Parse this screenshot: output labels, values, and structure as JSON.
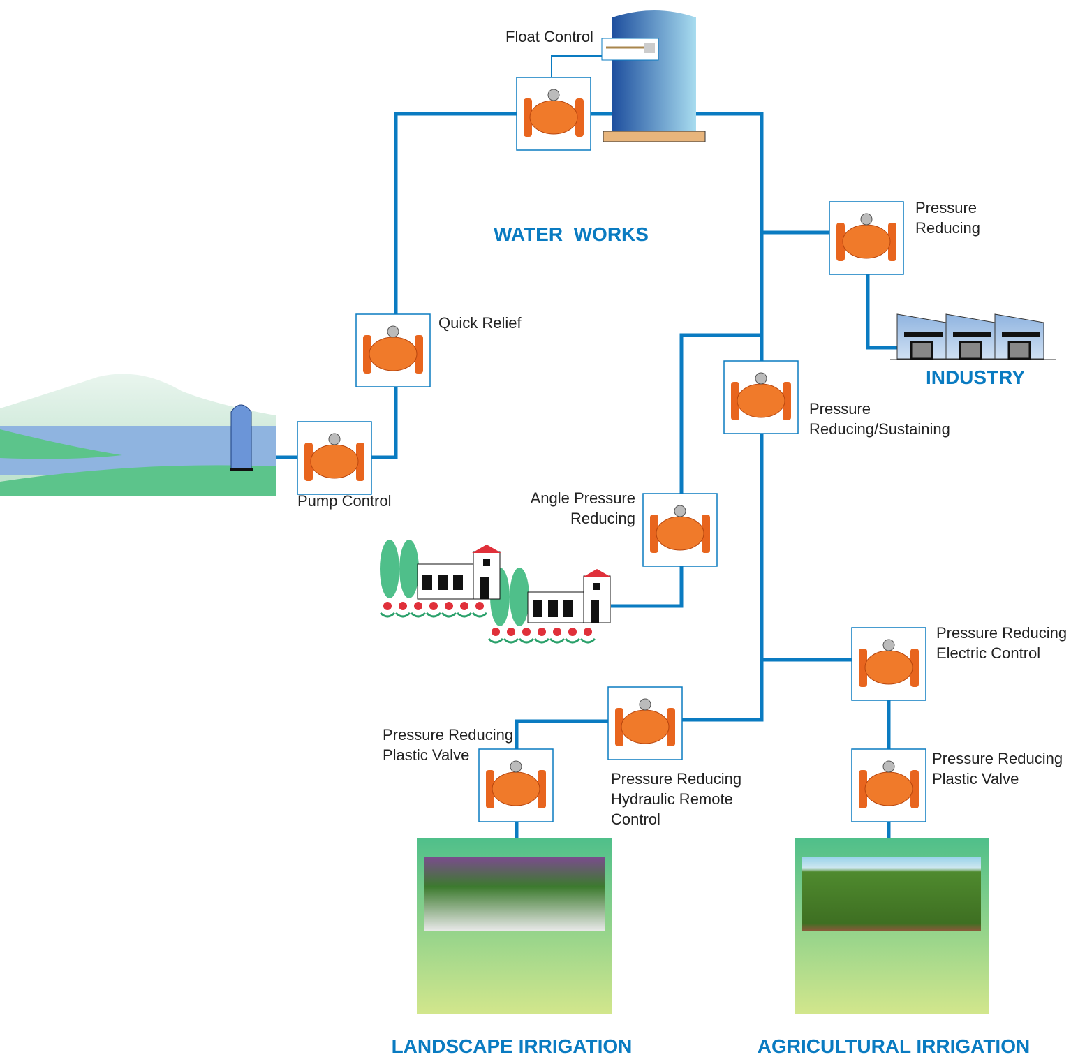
{
  "areas": {
    "water_works": "WATER  WORKS",
    "industry": "INDUSTRY",
    "landscape": "LANDSCAPE IRRIGATION",
    "agricultural": "AGRICULTURAL IRRIGATION"
  },
  "valves": [
    {
      "label": [
        "Float Control"
      ]
    },
    {
      "label": [
        "Quick Relief"
      ]
    },
    {
      "label": [
        "Pump Control"
      ]
    },
    {
      "label": [
        "Pressure",
        "Reducing"
      ]
    },
    {
      "label": [
        "Pressure",
        "Reducing/Sustaining"
      ]
    },
    {
      "label": [
        "Angle Pressure",
        "Reducing"
      ]
    },
    {
      "label": [
        "Pressure Reducing",
        "Electric Control"
      ]
    },
    {
      "label": [
        "Pressure Reducing",
        "Plastic Valve"
      ]
    },
    {
      "label": [
        "Pressure Reducing",
        "Hydraulic Remote",
        "Control"
      ]
    },
    {
      "label": [
        "Pressure Reducing",
        "Plastic Valve"
      ]
    }
  ]
}
